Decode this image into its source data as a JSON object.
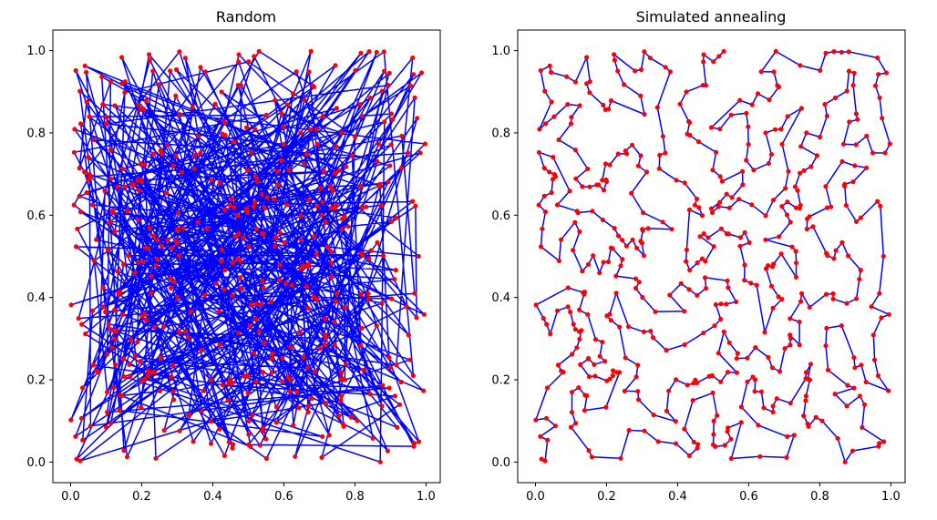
{
  "chart_data": [
    {
      "type": "scatter",
      "title": "Random",
      "xlabel": "",
      "ylabel": "",
      "xlim": [
        -0.05,
        1.04
      ],
      "ylim": [
        -0.05,
        1.05
      ],
      "xticks": [
        0.0,
        0.2,
        0.4,
        0.6,
        0.8,
        1.0
      ],
      "yticks": [
        0.0,
        0.2,
        0.4,
        0.6,
        0.8,
        1.0
      ],
      "xtick_labels": [
        "0.0",
        "0.2",
        "0.4",
        "0.6",
        "0.8",
        "1.0"
      ],
      "ytick_labels": [
        "0.0",
        "0.2",
        "0.4",
        "0.6",
        "0.8",
        "1.0"
      ],
      "point_count": 500,
      "path_color": "#0000ff",
      "point_color": "#ff0000",
      "grid": false,
      "path": "random_order_tour"
    },
    {
      "type": "scatter",
      "title": "Simulated annealing",
      "xlabel": "",
      "ylabel": "",
      "xlim": [
        -0.05,
        1.04
      ],
      "ylim": [
        -0.05,
        1.05
      ],
      "xticks": [
        0.0,
        0.2,
        0.4,
        0.6,
        0.8,
        1.0
      ],
      "yticks": [
        0.0,
        0.2,
        0.4,
        0.6,
        0.8,
        1.0
      ],
      "xtick_labels": [
        "0.0",
        "0.2",
        "0.4",
        "0.6",
        "0.8",
        "1.0"
      ],
      "ytick_labels": [
        "0.0",
        "0.2",
        "0.4",
        "0.6",
        "0.8",
        "1.0"
      ],
      "point_count": 500,
      "path_color": "#0000ff",
      "point_color": "#ff0000",
      "grid": false,
      "path": "optimized_short_tour"
    }
  ]
}
